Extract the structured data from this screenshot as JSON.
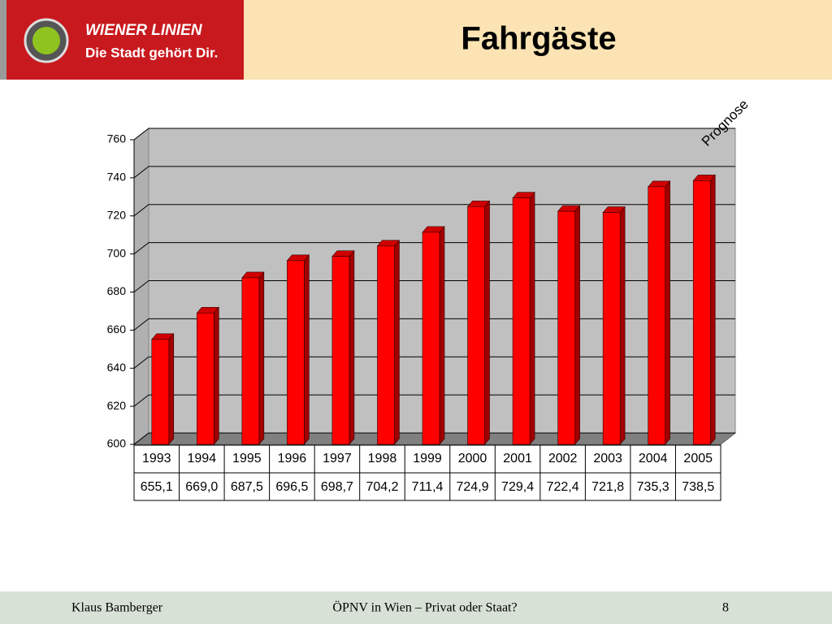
{
  "header": {
    "brand": "WIENER LINIEN",
    "slogan": "Die Stadt gehört Dir."
  },
  "chart_data": {
    "type": "bar3d",
    "title": "Fahrgäste",
    "annotation": "Prognose",
    "categories": [
      "1993",
      "1994",
      "1995",
      "1996",
      "1997",
      "1998",
      "1999",
      "2000",
      "2001",
      "2002",
      "2003",
      "2004",
      "2005"
    ],
    "values": [
      655.1,
      669.0,
      687.5,
      696.5,
      698.7,
      704.2,
      711.4,
      724.9,
      729.4,
      722.4,
      721.8,
      735.3,
      738.5
    ],
    "value_labels": [
      "655,1",
      "669,0",
      "687,5",
      "696,5",
      "698,7",
      "704,2",
      "711,4",
      "724,9",
      "729,4",
      "722,4",
      "721,8",
      "735,3",
      "738,5"
    ],
    "color": "#ff0000",
    "ylim": [
      600,
      760
    ],
    "yticks": [
      600,
      620,
      640,
      660,
      680,
      700,
      720,
      740,
      760
    ],
    "grid": true
  },
  "footer": {
    "author": "Klaus Bamberger",
    "topic": "ÖPNV in Wien – Privat oder Staat?",
    "page": "8"
  }
}
